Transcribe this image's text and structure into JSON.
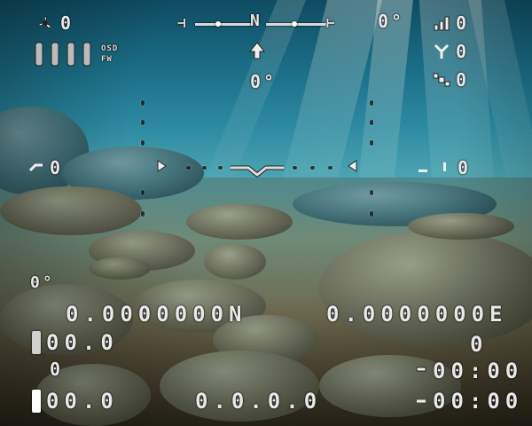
{
  "top_left": {
    "fan_value": "0",
    "status_line_1": "OSD",
    "status_line_2": "FW"
  },
  "heading": {
    "north_label": "N",
    "angle": "0°"
  },
  "top_right": {
    "angle": "0°",
    "value_1": "0",
    "value_2": "0",
    "value_3": "0"
  },
  "center": {
    "pitch": "0°",
    "left_value": "0",
    "right_value": "0"
  },
  "bottom": {
    "depth_angle": "0°",
    "latitude": "0.0000000N",
    "longitude": "0.0000000E",
    "left_value_1": "00.0",
    "left_value_2": "0",
    "left_value_3": "00.0",
    "right_value_1": "0",
    "time_1": "00:00",
    "time_2": "00:00",
    "ip_address": "0.0.0.0"
  },
  "icons": [
    "fan-icon",
    "battery-icon",
    "compass-north-icon",
    "home-arrow-icon",
    "signal-icon",
    "gps-icon",
    "satellite-icon",
    "timer-icon"
  ]
}
